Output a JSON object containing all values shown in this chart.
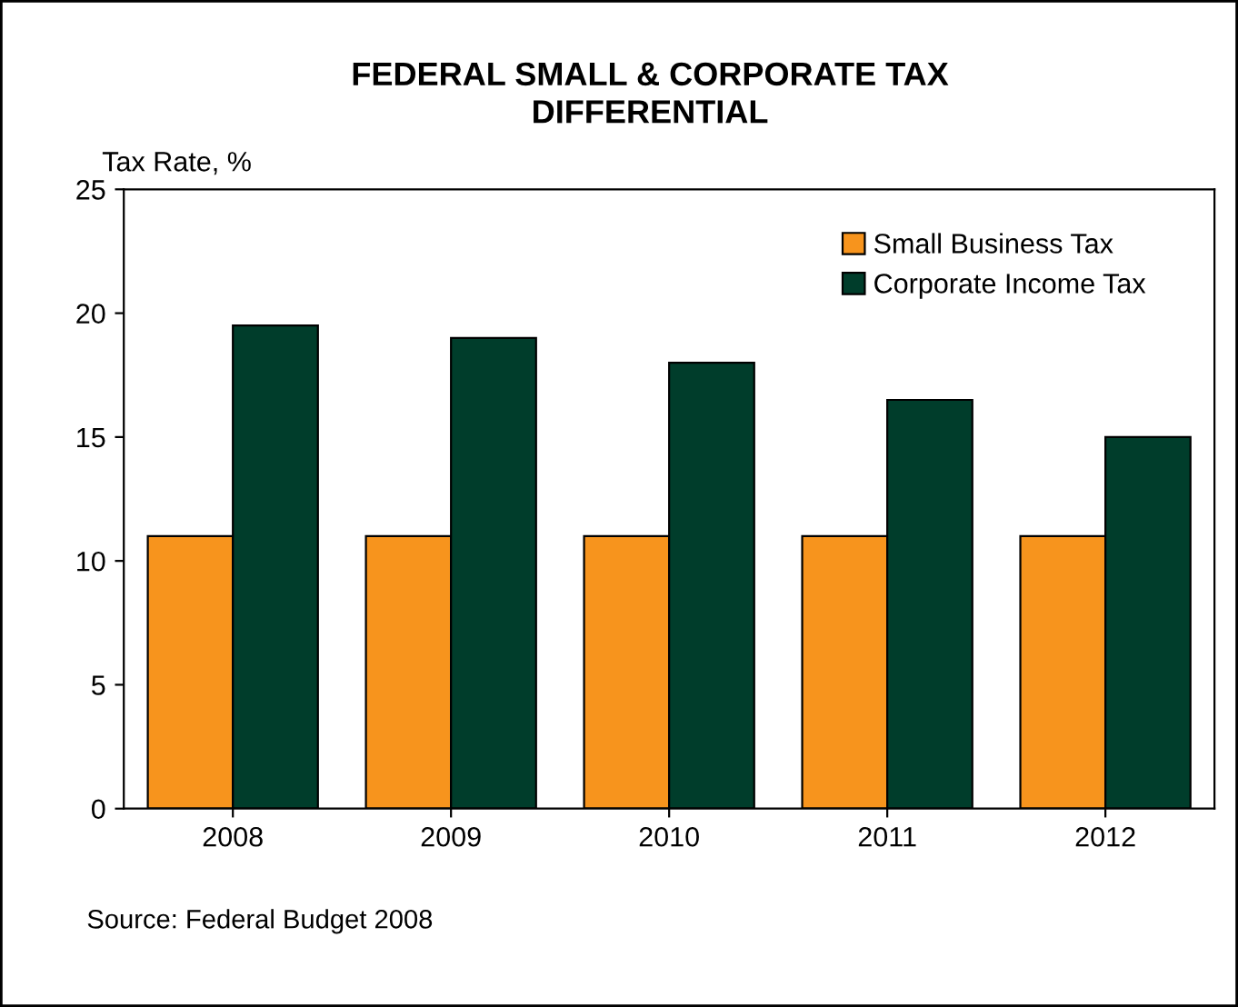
{
  "chart_data": {
    "type": "bar",
    "title": "FEDERAL SMALL & CORPORATE TAX\nDIFFERENTIAL",
    "ylabel": "Tax Rate, %",
    "categories": [
      "2008",
      "2009",
      "2010",
      "2011",
      "2012"
    ],
    "series": [
      {
        "name": "Small Business Tax",
        "color": "#f7941d",
        "values": [
          11,
          11,
          11,
          11,
          11
        ]
      },
      {
        "name": "Corporate Income Tax",
        "color": "#003d2b",
        "values": [
          19.5,
          19,
          18,
          16.5,
          15
        ]
      }
    ],
    "ylim": [
      0,
      25
    ],
    "yticks": [
      0,
      5,
      10,
      15,
      20,
      25
    ],
    "grid": false,
    "legend": "top right",
    "annotations": [
      "Source: Federal Budget 2008"
    ]
  }
}
